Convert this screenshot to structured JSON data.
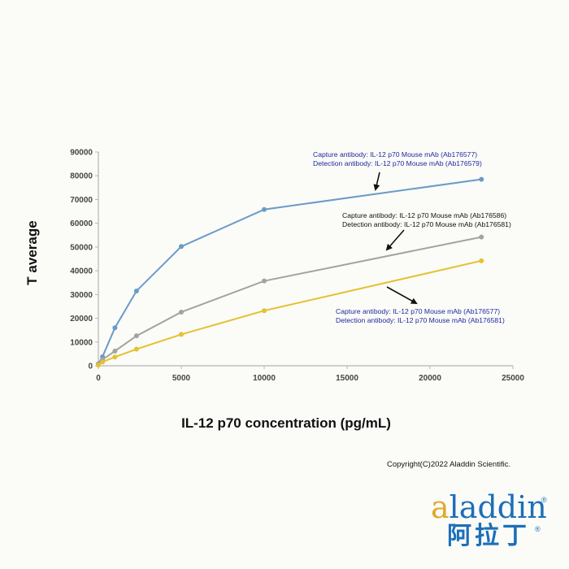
{
  "chart_data": {
    "type": "line",
    "xlabel": "IL-12 p70 concentration (pg/mL)",
    "ylabel": "T average",
    "xlim": [
      0,
      25000
    ],
    "ylim": [
      0,
      90000
    ],
    "xticks": [
      0,
      5000,
      10000,
      15000,
      20000,
      25000
    ],
    "yticks": [
      0,
      10000,
      20000,
      30000,
      40000,
      50000,
      60000,
      70000,
      80000,
      90000
    ],
    "grid": false,
    "series": [
      {
        "color": "#6a9bc7",
        "points": [
          [
            0,
            800
          ],
          [
            250,
            3800
          ],
          [
            1000,
            16000
          ],
          [
            2300,
            31500
          ],
          [
            5000,
            50200
          ],
          [
            10000,
            65800
          ],
          [
            23100,
            78500
          ]
        ]
      },
      {
        "color": "#a3a3a3",
        "points": [
          [
            0,
            500
          ],
          [
            250,
            2600
          ],
          [
            1000,
            6200
          ],
          [
            2300,
            12600
          ],
          [
            5000,
            22600
          ],
          [
            10000,
            35700
          ],
          [
            23100,
            54200
          ]
        ]
      },
      {
        "color": "#e5c12f",
        "points": [
          [
            0,
            300
          ],
          [
            250,
            1600
          ],
          [
            1000,
            3700
          ],
          [
            2300,
            7000
          ],
          [
            5000,
            13200
          ],
          [
            10000,
            23200
          ],
          [
            23100,
            44200
          ]
        ]
      }
    ],
    "annotations": [
      {
        "color": "#1f2a9e",
        "lines": [
          "Capture antibody: IL-12 p70 Mouse mAb (Ab176577)",
          "Detection antibody: IL-12 p70 Mouse mAb (Ab176579)"
        ]
      },
      {
        "color": "#111111",
        "lines": [
          "Capture antibody: IL-12 p70 Mouse mAb (Ab176586)",
          "Detection antibody: IL-12 p70 Mouse mAb (Ab176581)"
        ]
      },
      {
        "color": "#1f2a9e",
        "lines": [
          "Capture antibody: IL-12 p70 Mouse mAb (Ab176577)",
          "Detection antibody: IL-12 p70 Mouse mAb (Ab176581)"
        ]
      }
    ]
  },
  "footer": {
    "copyright": "Copyright(C)2022 Aladdin Scientific."
  },
  "logo": {
    "wordmark": "aladdin",
    "chinese": "阿拉丁",
    "registered": "®",
    "brand_color": "#1c6fb8",
    "accent_color": "#e0a92a"
  }
}
